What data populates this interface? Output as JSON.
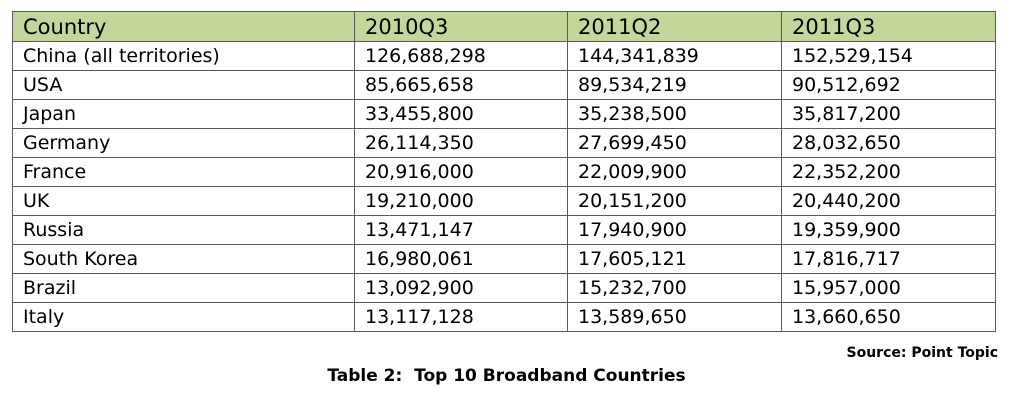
{
  "chart_data": {
    "type": "table",
    "columns": [
      "Country",
      "2010Q3",
      "2011Q2",
      "2011Q3"
    ],
    "rows": [
      [
        "China (all territories)",
        "126,688,298",
        "144,341,839",
        "152,529,154"
      ],
      [
        "USA",
        "85,665,658",
        "89,534,219",
        "90,512,692"
      ],
      [
        "Japan",
        "33,455,800",
        "35,238,500",
        "35,817,200"
      ],
      [
        "Germany",
        "26,114,350",
        "27,699,450",
        "28,032,650"
      ],
      [
        "France",
        "20,916,000",
        "22,009,900",
        "22,352,200"
      ],
      [
        "UK",
        "19,210,000",
        "20,151,200",
        "20,440,200"
      ],
      [
        "Russia",
        "13,471,147",
        "17,940,900",
        "19,359,900"
      ],
      [
        "South Korea",
        "16,980,061",
        "17,605,121",
        "17,816,717"
      ],
      [
        "Brazil",
        "13,092,900",
        "15,232,700",
        "15,957,000"
      ],
      [
        "Italy",
        "13,117,128",
        "13,589,650",
        "13,660,650"
      ]
    ],
    "source": "Source: Point Topic",
    "caption": "Table 2:  Top 10 Broadband Countries",
    "header_color": "#c3d69b",
    "border_color": "#5a5a5a"
  }
}
